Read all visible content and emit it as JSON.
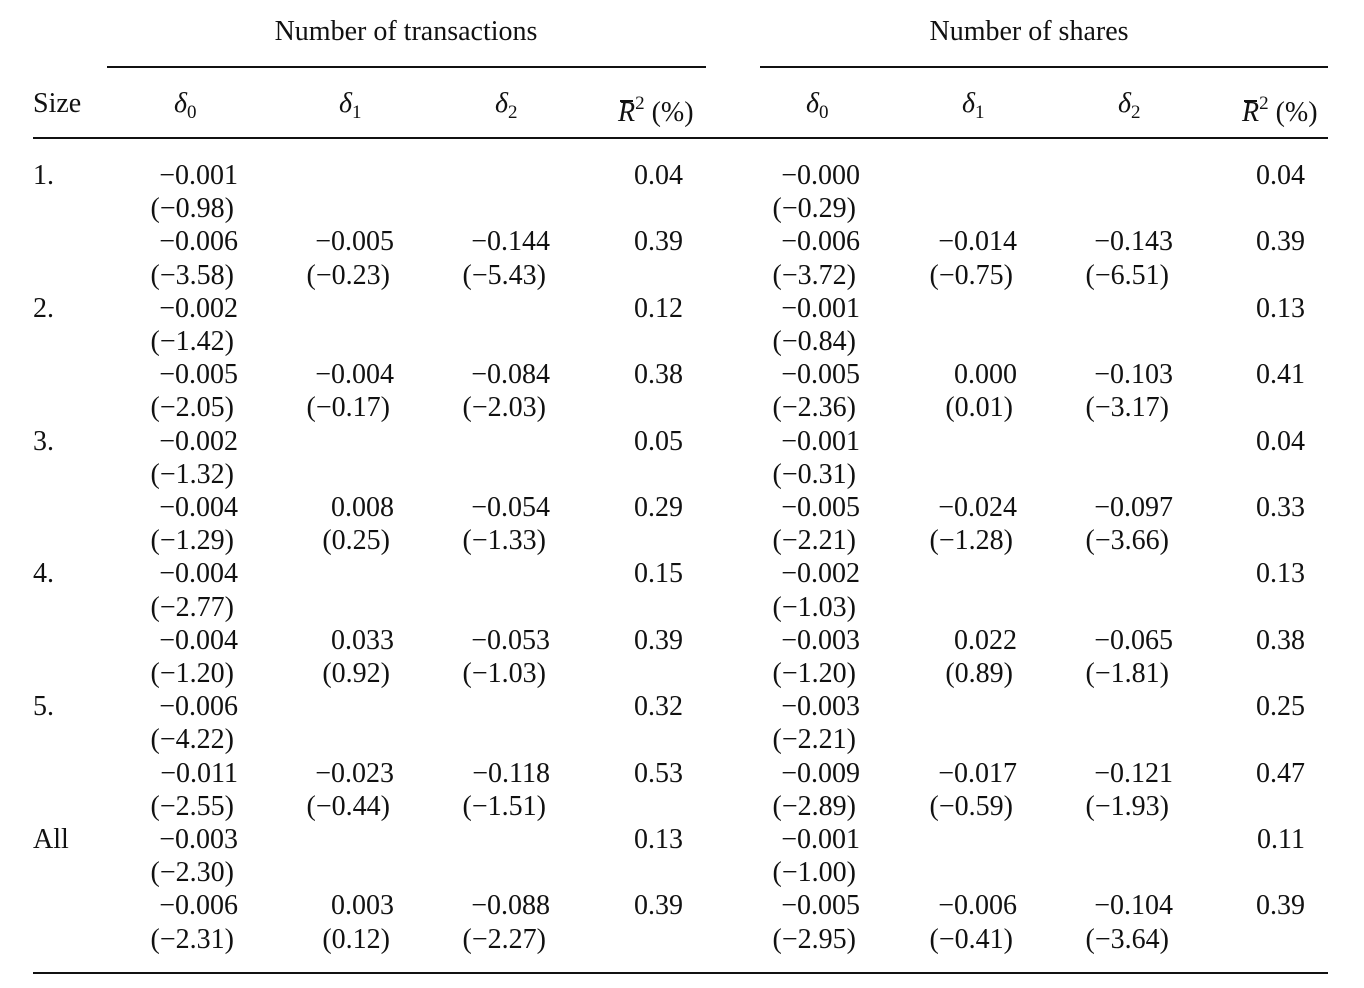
{
  "table": {
    "group_headers": [
      "Number of transactions",
      "Number of shares"
    ],
    "size_label": "Size",
    "coef_headers": [
      {
        "symbol": "δ",
        "sub": "0"
      },
      {
        "symbol": "δ",
        "sub": "1"
      },
      {
        "symbol": "δ",
        "sub": "2"
      }
    ],
    "r2_header": {
      "symbol": "R",
      "sup": "2",
      "unit": "(%)"
    },
    "groups": [
      {
        "size": "1.",
        "rows": [
          {
            "left": {
              "est": [
                "−0.001",
                "",
                ""
              ],
              "t": [
                "(−0.98)",
                "",
                ""
              ],
              "r2": "0.04"
            },
            "right": {
              "est": [
                "−0.000",
                "",
                ""
              ],
              "t": [
                "(−0.29)",
                "",
                ""
              ],
              "r2": "0.04"
            }
          },
          {
            "left": {
              "est": [
                "−0.006",
                "−0.005",
                "−0.144"
              ],
              "t": [
                "(−3.58)",
                "(−0.23)",
                "(−5.43)"
              ],
              "r2": "0.39"
            },
            "right": {
              "est": [
                "−0.006",
                "−0.014",
                "−0.143"
              ],
              "t": [
                "(−3.72)",
                "(−0.75)",
                "(−6.51)"
              ],
              "r2": "0.39"
            }
          }
        ]
      },
      {
        "size": "2.",
        "rows": [
          {
            "left": {
              "est": [
                "−0.002",
                "",
                ""
              ],
              "t": [
                "(−1.42)",
                "",
                ""
              ],
              "r2": "0.12"
            },
            "right": {
              "est": [
                "−0.001",
                "",
                ""
              ],
              "t": [
                "(−0.84)",
                "",
                ""
              ],
              "r2": "0.13"
            }
          },
          {
            "left": {
              "est": [
                "−0.005",
                "−0.004",
                "−0.084"
              ],
              "t": [
                "(−2.05)",
                "(−0.17)",
                "(−2.03)"
              ],
              "r2": "0.38"
            },
            "right": {
              "est": [
                "−0.005",
                "0.000",
                "−0.103"
              ],
              "t": [
                "(−2.36)",
                "(0.01)",
                "(−3.17)"
              ],
              "r2": "0.41"
            }
          }
        ]
      },
      {
        "size": "3.",
        "rows": [
          {
            "left": {
              "est": [
                "−0.002",
                "",
                ""
              ],
              "t": [
                "(−1.32)",
                "",
                ""
              ],
              "r2": "0.05"
            },
            "right": {
              "est": [
                "−0.001",
                "",
                ""
              ],
              "t": [
                "(−0.31)",
                "",
                ""
              ],
              "r2": "0.04"
            }
          },
          {
            "left": {
              "est": [
                "−0.004",
                "0.008",
                "−0.054"
              ],
              "t": [
                "(−1.29)",
                "(0.25)",
                "(−1.33)"
              ],
              "r2": "0.29"
            },
            "right": {
              "est": [
                "−0.005",
                "−0.024",
                "−0.097"
              ],
              "t": [
                "(−2.21)",
                "(−1.28)",
                "(−3.66)"
              ],
              "r2": "0.33"
            }
          }
        ]
      },
      {
        "size": "4.",
        "rows": [
          {
            "left": {
              "est": [
                "−0.004",
                "",
                ""
              ],
              "t": [
                "(−2.77)",
                "",
                ""
              ],
              "r2": "0.15"
            },
            "right": {
              "est": [
                "−0.002",
                "",
                ""
              ],
              "t": [
                "(−1.03)",
                "",
                ""
              ],
              "r2": "0.13"
            }
          },
          {
            "left": {
              "est": [
                "−0.004",
                "0.033",
                "−0.053"
              ],
              "t": [
                "(−1.20)",
                "(0.92)",
                "(−1.03)"
              ],
              "r2": "0.39"
            },
            "right": {
              "est": [
                "−0.003",
                "0.022",
                "−0.065"
              ],
              "t": [
                "(−1.20)",
                "(0.89)",
                "(−1.81)"
              ],
              "r2": "0.38"
            }
          }
        ]
      },
      {
        "size": "5.",
        "rows": [
          {
            "left": {
              "est": [
                "−0.006",
                "",
                ""
              ],
              "t": [
                "(−4.22)",
                "",
                ""
              ],
              "r2": "0.32"
            },
            "right": {
              "est": [
                "−0.003",
                "",
                ""
              ],
              "t": [
                "(−2.21)",
                "",
                ""
              ],
              "r2": "0.25"
            }
          },
          {
            "left": {
              "est": [
                "−0.011",
                "−0.023",
                "−0.118"
              ],
              "t": [
                "(−2.55)",
                "(−0.44)",
                "(−1.51)"
              ],
              "r2": "0.53"
            },
            "right": {
              "est": [
                "−0.009",
                "−0.017",
                "−0.121"
              ],
              "t": [
                "(−2.89)",
                "(−0.59)",
                "(−1.93)"
              ],
              "r2": "0.47"
            }
          }
        ]
      },
      {
        "size": "All",
        "rows": [
          {
            "left": {
              "est": [
                "−0.003",
                "",
                ""
              ],
              "t": [
                "(−2.30)",
                "",
                ""
              ],
              "r2": "0.13"
            },
            "right": {
              "est": [
                "−0.001",
                "",
                ""
              ],
              "t": [
                "(−1.00)",
                "",
                ""
              ],
              "r2": "0.11"
            }
          },
          {
            "left": {
              "est": [
                "−0.006",
                "0.003",
                "−0.088"
              ],
              "t": [
                "(−2.31)",
                "(0.12)",
                "(−2.27)"
              ],
              "r2": "0.39"
            },
            "right": {
              "est": [
                "−0.005",
                "−0.006",
                "−0.104"
              ],
              "t": [
                "(−2.95)",
                "(−0.41)",
                "(−3.64)"
              ],
              "r2": "0.39"
            }
          }
        ]
      }
    ]
  }
}
